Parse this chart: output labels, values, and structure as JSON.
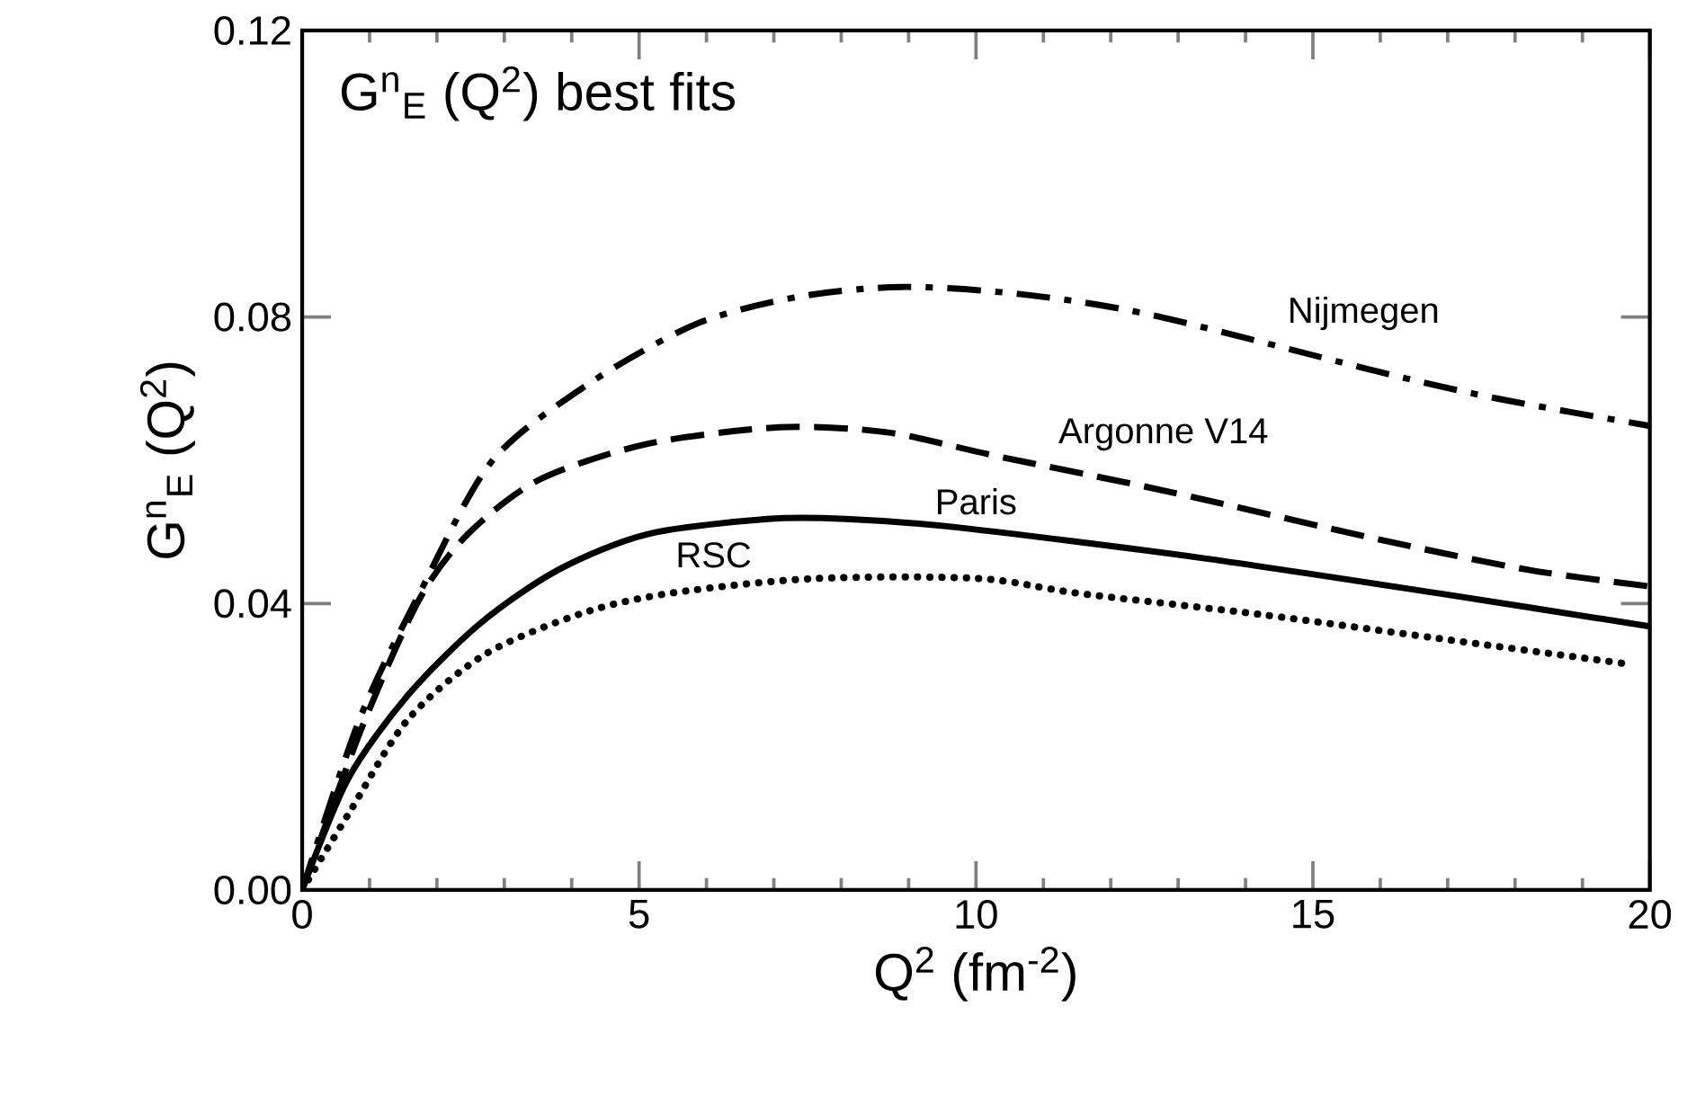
{
  "chart_data": {
    "type": "line",
    "annotations": [
      "G$^{n}$$_{E}$ (Q$^{2}$)  best fits"
    ],
    "xlabel": "Q$^{2}$  (fm$^{-2}$)",
    "ylabel": "G$^{n}$$_{E}$ (Q$^{2}$)",
    "xlim": [
      0,
      20
    ],
    "ylim": [
      0,
      0.12
    ],
    "xticks": [
      0,
      5,
      10,
      15,
      20
    ],
    "yticks": [
      {
        "value": 0,
        "label": "0.00"
      },
      {
        "value": 0.04,
        "label": "0.04"
      },
      {
        "value": 0.08,
        "label": "0.08"
      },
      {
        "value": 0.12,
        "label": "0.12"
      }
    ],
    "grid": false,
    "series": [
      {
        "name": "Nijmegen",
        "color": "#000000",
        "line_style": "dashdot",
        "x": [
          0,
          0.85,
          1.74,
          2.81,
          4.24,
          5.84,
          7.35,
          8.9,
          10.65,
          12.6,
          16.0,
          17.8,
          20
        ],
        "values": [
          0,
          0.0238,
          0.0414,
          0.0598,
          0.0706,
          0.079,
          0.0828,
          0.0842,
          0.0832,
          0.0803,
          0.0723,
          0.0685,
          0.0648
        ]
      },
      {
        "name": "Argonne V14",
        "color": "#000000",
        "line_style": "dashed",
        "x": [
          0,
          0.9,
          1.74,
          2.46,
          3.52,
          5.13,
          7.08,
          8.68,
          10.3,
          12.87,
          16.0,
          18.2,
          20
        ],
        "values": [
          0,
          0.023,
          0.0406,
          0.0497,
          0.0573,
          0.0623,
          0.0646,
          0.0639,
          0.0606,
          0.0556,
          0.0489,
          0.0447,
          0.0424
        ]
      },
      {
        "name": "Paris",
        "color": "#000000",
        "line_style": "solid",
        "x": [
          0,
          0.68,
          1.57,
          2.64,
          3.8,
          5.13,
          6.91,
          8.07,
          9.75,
          13.32,
          16.88,
          20
        ],
        "values": [
          0,
          0.0155,
          0.0272,
          0.0372,
          0.0447,
          0.0497,
          0.0518,
          0.0518,
          0.0506,
          0.0464,
          0.0414,
          0.0368
        ]
      },
      {
        "name": "RSC",
        "color": "#000000",
        "line_style": "dotted",
        "x": [
          0,
          0.68,
          1.57,
          2.73,
          4.24,
          5.58,
          7.63,
          10.03,
          11.54,
          14.2,
          16.88,
          19.72
        ],
        "values": [
          0,
          0.0105,
          0.0238,
          0.033,
          0.0389,
          0.0416,
          0.0435,
          0.0435,
          0.0414,
          0.0385,
          0.0351,
          0.0315
        ]
      }
    ]
  }
}
